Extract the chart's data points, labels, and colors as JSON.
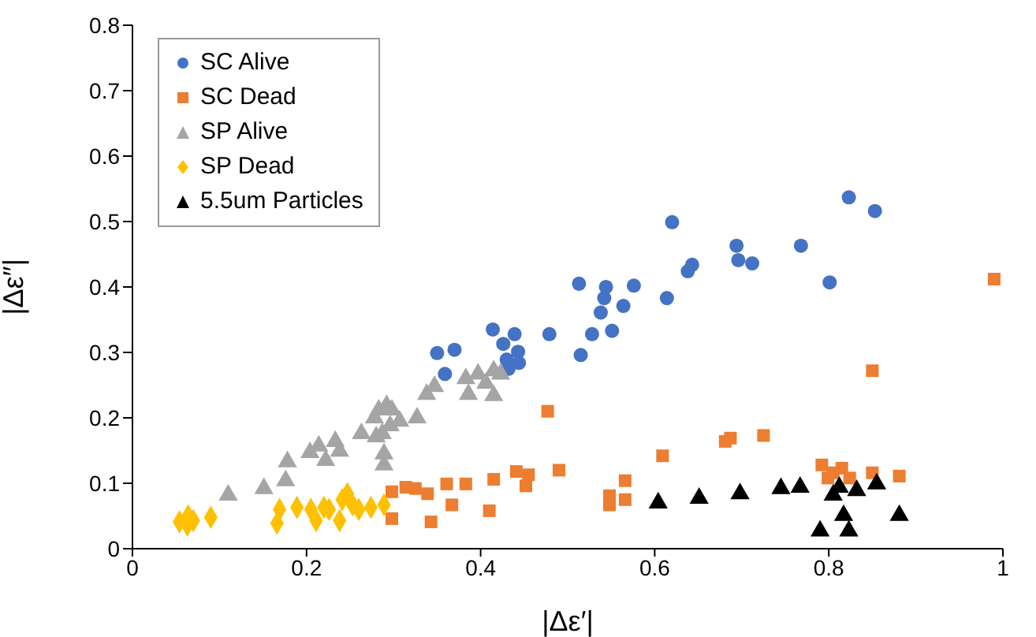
{
  "chart_data": {
    "type": "scatter",
    "xlabel": "|Δε′|",
    "ylabel": "|Δε″|",
    "xlim": [
      0,
      1
    ],
    "ylim": [
      0,
      0.8
    ],
    "xticks": [
      0,
      0.2,
      0.4,
      0.6,
      0.8,
      1
    ],
    "yticks": [
      0,
      0.1,
      0.2,
      0.3,
      0.4,
      0.5,
      0.6,
      0.7,
      0.8
    ],
    "grid": false,
    "legend": "top left",
    "series": [
      {
        "name": "SC Alive",
        "color": "#4472c4",
        "marker": "circle",
        "x": [
          0.35,
          0.37,
          0.359,
          0.414,
          0.439,
          0.426,
          0.443,
          0.43,
          0.444,
          0.432,
          0.479,
          0.513,
          0.544,
          0.542,
          0.538,
          0.564,
          0.576,
          0.528,
          0.551,
          0.515,
          0.62,
          0.614,
          0.638,
          0.643,
          0.694,
          0.696,
          0.712,
          0.768,
          0.801,
          0.823,
          0.853
        ],
        "values": [
          0.299,
          0.304,
          0.267,
          0.335,
          0.328,
          0.313,
          0.301,
          0.289,
          0.284,
          0.275,
          0.328,
          0.405,
          0.4,
          0.383,
          0.361,
          0.371,
          0.402,
          0.328,
          0.333,
          0.296,
          0.499,
          0.383,
          0.424,
          0.434,
          0.463,
          0.441,
          0.436,
          0.463,
          0.407,
          0.537,
          0.516
        ]
      },
      {
        "name": "SC Dead",
        "color": "#ed7d31",
        "marker": "square",
        "x": [
          0.298,
          0.314,
          0.325,
          0.339,
          0.298,
          0.343,
          0.361,
          0.367,
          0.383,
          0.41,
          0.415,
          0.441,
          0.455,
          0.452,
          0.49,
          0.477,
          0.548,
          0.548,
          0.566,
          0.566,
          0.609,
          0.681,
          0.687,
          0.725,
          0.85,
          0.99,
          0.792,
          0.799,
          0.805,
          0.815,
          0.824,
          0.85,
          0.881
        ],
        "values": [
          0.087,
          0.094,
          0.092,
          0.084,
          0.046,
          0.041,
          0.099,
          0.067,
          0.099,
          0.058,
          0.106,
          0.118,
          0.113,
          0.096,
          0.12,
          0.21,
          0.081,
          0.067,
          0.104,
          0.075,
          0.142,
          0.164,
          0.169,
          0.173,
          0.272,
          0.412,
          0.128,
          0.108,
          0.116,
          0.123,
          0.108,
          0.116,
          0.111
        ]
      },
      {
        "name": "SP Alive",
        "color": "#a5a5a5",
        "marker": "triangle",
        "x": [
          0.11,
          0.151,
          0.176,
          0.178,
          0.204,
          0.214,
          0.222,
          0.233,
          0.238,
          0.263,
          0.278,
          0.283,
          0.292,
          0.298,
          0.28,
          0.287,
          0.289,
          0.289,
          0.296,
          0.307,
          0.327,
          0.338,
          0.347,
          0.383,
          0.386,
          0.397,
          0.415,
          0.423,
          0.415,
          0.406
        ],
        "values": [
          0.082,
          0.092,
          0.104,
          0.133,
          0.147,
          0.157,
          0.135,
          0.164,
          0.149,
          0.176,
          0.2,
          0.212,
          0.219,
          0.212,
          0.171,
          0.176,
          0.145,
          0.128,
          0.188,
          0.195,
          0.2,
          0.236,
          0.248,
          0.26,
          0.236,
          0.267,
          0.272,
          0.267,
          0.234,
          0.253
        ]
      },
      {
        "name": "SP Dead",
        "color": "#ffc000",
        "marker": "diamond",
        "x": [
          0.054,
          0.063,
          0.07,
          0.064,
          0.09,
          0.169,
          0.166,
          0.189,
          0.205,
          0.211,
          0.22,
          0.226,
          0.238,
          0.241,
          0.247,
          0.253,
          0.26,
          0.274,
          0.289
        ],
        "values": [
          0.041,
          0.036,
          0.043,
          0.05,
          0.048,
          0.06,
          0.039,
          0.063,
          0.06,
          0.043,
          0.063,
          0.06,
          0.043,
          0.075,
          0.084,
          0.067,
          0.06,
          0.063,
          0.067
        ]
      },
      {
        "name": "5.5um Particles",
        "color": "#000000",
        "marker": "triangle",
        "x": [
          0.604,
          0.651,
          0.698,
          0.745,
          0.767,
          0.79,
          0.805,
          0.812,
          0.817,
          0.823,
          0.832,
          0.855,
          0.881
        ],
        "values": [
          0.07,
          0.077,
          0.084,
          0.092,
          0.094,
          0.027,
          0.082,
          0.094,
          0.051,
          0.027,
          0.089,
          0.099,
          0.051
        ]
      }
    ]
  }
}
